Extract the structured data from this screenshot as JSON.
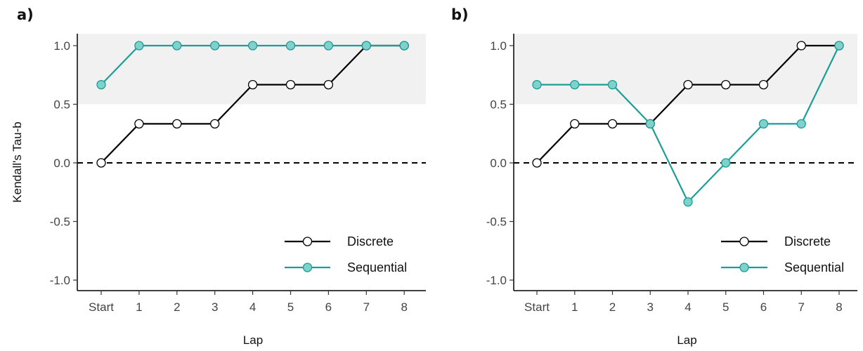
{
  "colors": {
    "discrete_line": "#000000",
    "discrete_fill": "#ffffff",
    "sequential_line": "#1a9e96",
    "sequential_fill": "#7fd1cb",
    "threshold_band": "#f1f1f1",
    "zero_line": "#000000"
  },
  "chart_data": [
    {
      "type": "line",
      "panel_label": "a)",
      "categories": [
        "Start",
        "1",
        "2",
        "3",
        "4",
        "5",
        "6",
        "7",
        "8"
      ],
      "series": [
        {
          "name": "Discrete",
          "values": [
            0,
            0.333,
            0.333,
            0.333,
            0.667,
            0.667,
            0.667,
            1.0,
            1.0
          ]
        },
        {
          "name": "Sequential",
          "values": [
            0.667,
            1.0,
            1.0,
            1.0,
            1.0,
            1.0,
            1.0,
            1.0,
            1.0
          ]
        }
      ],
      "xlabel": "Lap",
      "ylabel": "Kendall's Tau-b",
      "ylim": [
        -1.0,
        1.0
      ],
      "yticks": [
        "1.0",
        "0.5",
        "0.0",
        "-0.5",
        "-1.0"
      ],
      "yticks_values": [
        1.0,
        0.5,
        0.0,
        -0.5,
        -1.0
      ],
      "shaded_band": [
        0.5,
        1.1
      ],
      "reference_line": 0,
      "grid": false,
      "legend_position": "bottom-right"
    },
    {
      "type": "line",
      "panel_label": "b)",
      "categories": [
        "Start",
        "1",
        "2",
        "3",
        "4",
        "5",
        "6",
        "7",
        "8"
      ],
      "series": [
        {
          "name": "Discrete",
          "values": [
            0,
            0.333,
            0.333,
            0.333,
            0.667,
            0.667,
            0.667,
            1.0,
            1.0
          ]
        },
        {
          "name": "Sequential",
          "values": [
            0.667,
            0.667,
            0.667,
            0.333,
            -0.333,
            0,
            0.333,
            0.333,
            1.0
          ]
        }
      ],
      "xlabel": "Lap",
      "ylabel": "",
      "ylim": [
        -1.0,
        1.0
      ],
      "yticks": [
        "1.0",
        "0.5",
        "0.0",
        "-0.5",
        "-1.0"
      ],
      "yticks_values": [
        1.0,
        0.5,
        0.0,
        -0.5,
        -1.0
      ],
      "shaded_band": [
        0.5,
        1.1
      ],
      "reference_line": 0,
      "grid": false,
      "legend_position": "bottom-right"
    }
  ]
}
